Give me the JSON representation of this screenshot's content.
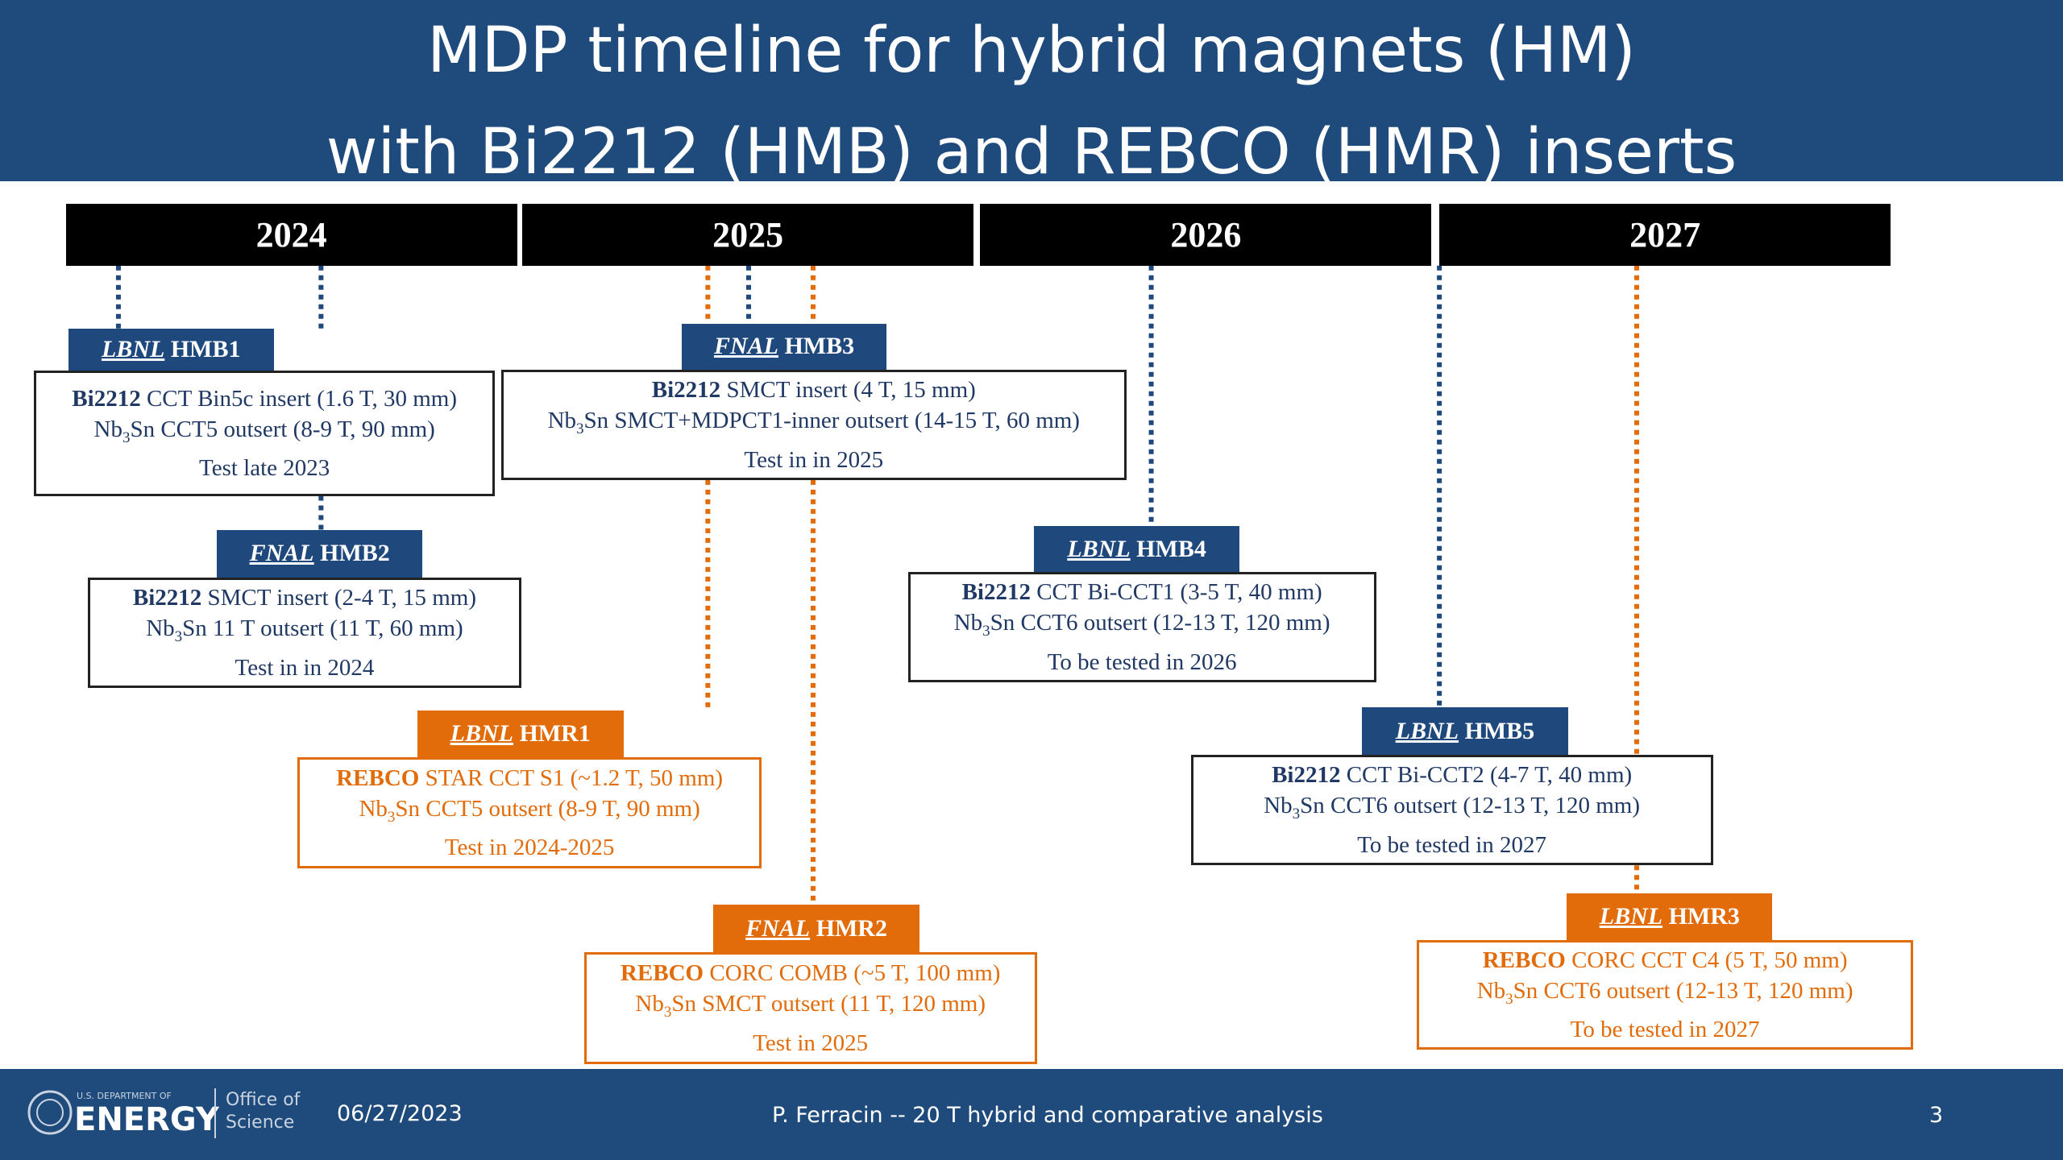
{
  "header": {
    "title_lines": [
      "MDP timeline for hybrid magnets (HM)",
      "with Bi2212 (HMB) and REBCO (HMR) inserts"
    ]
  },
  "years": [
    "2024",
    "2025",
    "2026",
    "2027"
  ],
  "items": [
    {
      "lab": "LBNL",
      "name": " HMB1",
      "lines": [
        [
          "Bi2212",
          " CCT Bin5c insert (1.6 T, 30 mm)"
        ],
        [
          "Nb",
          "3",
          "Sn CCT5 outsert (8-9 T, 90 mm)"
        ],
        [
          "Test late 2023"
        ]
      ]
    },
    {
      "lab": "FNAL",
      "name": " HMB3",
      "lines": [
        [
          "Bi2212",
          " SMCT insert (4 T, 15 mm)"
        ],
        [
          "Nb",
          "3",
          "Sn SMCT+MDPCT1-inner outsert (14-15 T, 60 mm)"
        ],
        [
          "Test in in 2025"
        ]
      ]
    },
    {
      "lab": "FNAL",
      "name": " HMB2",
      "lines": [
        [
          "Bi2212",
          " SMCT insert (2-4 T, 15 mm)"
        ],
        [
          "Nb",
          "3",
          "Sn 11 T outsert (11 T, 60 mm)"
        ],
        [
          "Test in in 2024"
        ]
      ]
    },
    {
      "lab": "LBNL",
      "name": " HMB4",
      "lines": [
        [
          "Bi2212",
          " CCT Bi-CCT1 (3-5 T, 40 mm)"
        ],
        [
          "Nb",
          "3",
          "Sn CCT6 outsert (12-13 T, 120 mm)"
        ],
        [
          "To be tested in 2026"
        ]
      ]
    },
    {
      "lab": "LBNL",
      "name": " HMR1",
      "lines": [
        [
          "REBCO",
          " STAR CCT S1 (~1.2 T, 50 mm)"
        ],
        [
          "Nb",
          "3",
          "Sn CCT5 outsert (8-9 T, 90 mm)"
        ],
        [
          "Test in 2024-2025"
        ]
      ]
    },
    {
      "lab": "LBNL",
      "name": " HMB5",
      "lines": [
        [
          "Bi2212",
          " CCT Bi-CCT2 (4-7 T, 40 mm)"
        ],
        [
          "Nb",
          "3",
          "Sn CCT6 outsert (12-13 T, 120 mm)"
        ],
        [
          "To be tested in 2027"
        ]
      ]
    },
    {
      "lab": "FNAL",
      "name": " HMR2",
      "lines": [
        [
          "REBCO",
          " CORC COMB (~5 T, 100 mm)"
        ],
        [
          "Nb",
          "3",
          "Sn SMCT outsert (11 T, 120 mm)"
        ],
        [
          "Test in 2025"
        ]
      ]
    },
    {
      "lab": "LBNL",
      "name": " HMR3",
      "lines": [
        [
          "REBCO",
          " CORC CCT C4 (5 T, 50 mm)"
        ],
        [
          "Nb",
          "3",
          "Sn CCT6 outsert (12-13 T, 120 mm)"
        ],
        [
          "To be tested in 2027"
        ]
      ]
    }
  ],
  "footer": {
    "logo_top": "U.S. DEPARTMENT OF",
    "logo_main": "ENERGY",
    "office_lines": [
      "Office of",
      "Science"
    ],
    "date": "06/27/2023",
    "center": "P. Ferracin -- 20 T hybrid and comparative analysis",
    "page": "3"
  }
}
